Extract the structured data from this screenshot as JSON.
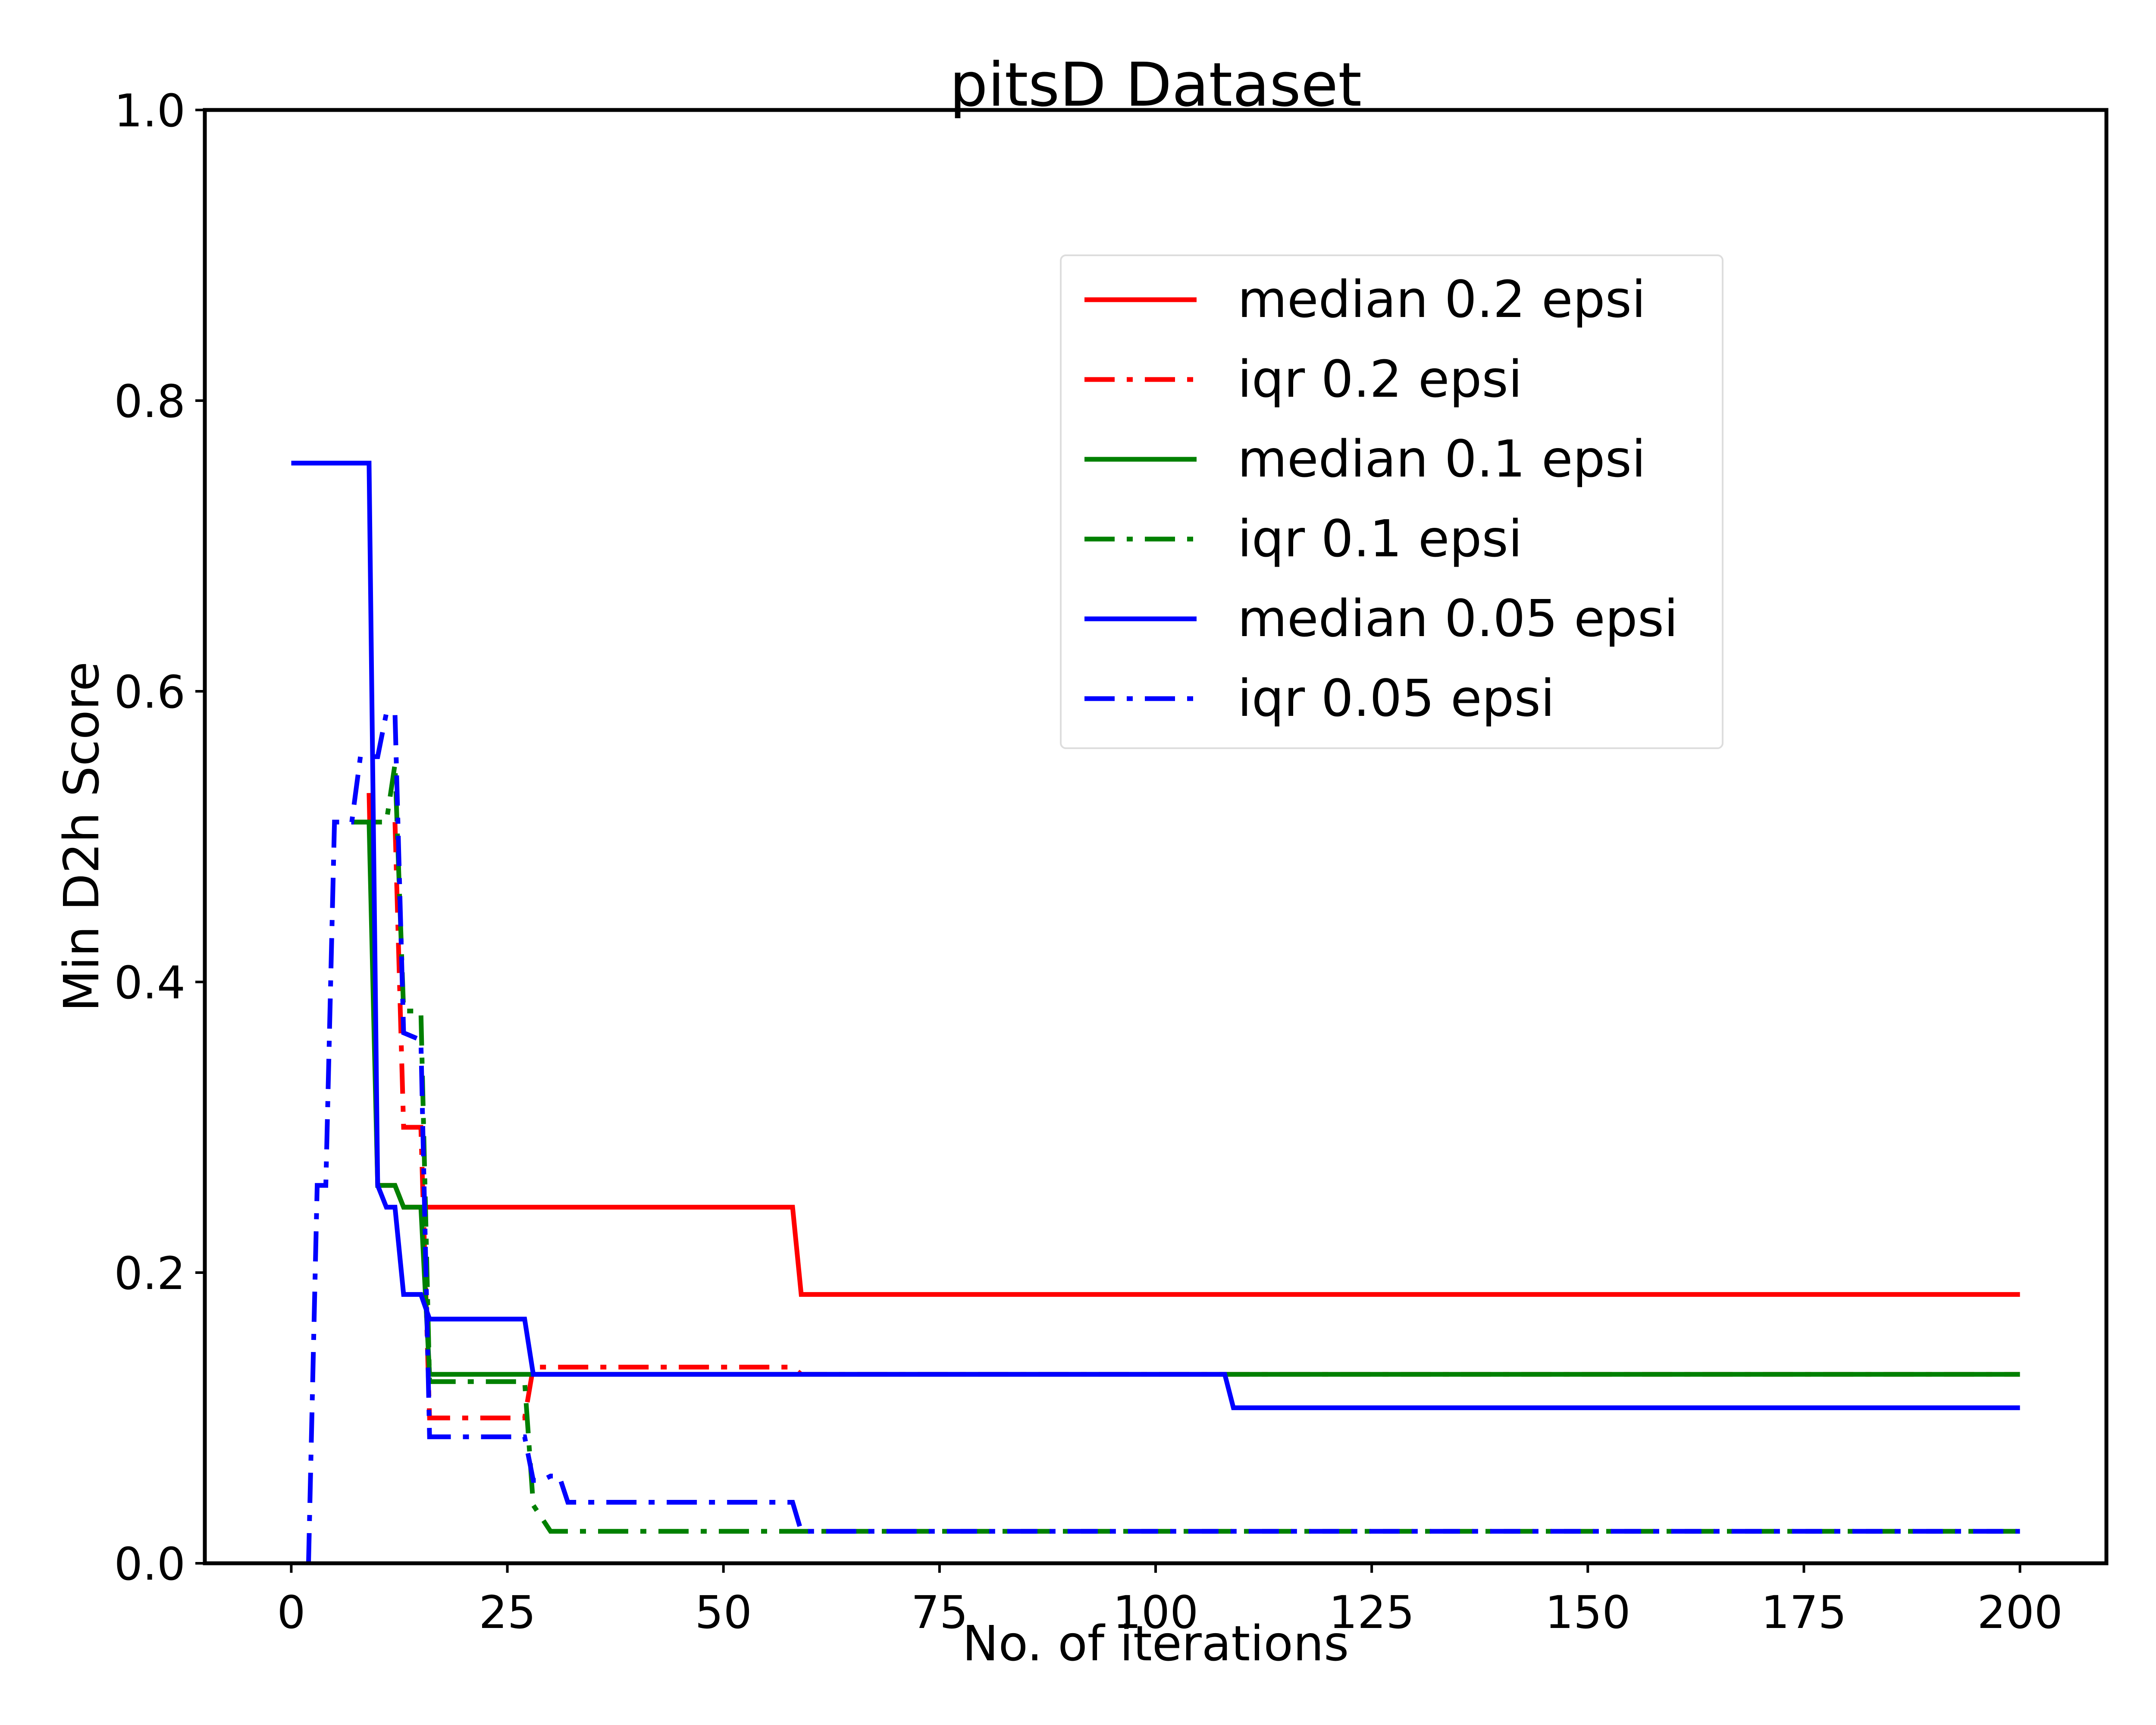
{
  "chart_data": {
    "type": "line",
    "title": "pitsD Dataset",
    "xlabel": "No. of iterations",
    "ylabel": "Min D2h Score",
    "xlim": [
      -10,
      210
    ],
    "ylim": [
      0,
      1
    ],
    "xticks": [
      0,
      25,
      50,
      75,
      100,
      125,
      150,
      175,
      200
    ],
    "yticks": [
      0.0,
      0.2,
      0.4,
      0.6,
      0.8,
      1.0
    ],
    "xtick_labels": [
      "0",
      "25",
      "50",
      "75",
      "100",
      "125",
      "150",
      "175",
      "200"
    ],
    "ytick_labels": [
      "0.0",
      "0.2",
      "0.4",
      "0.6",
      "0.8",
      "1.0"
    ],
    "grid": false,
    "legend_position": "upper-right",
    "series": [
      {
        "name": "median 0.2 epsi",
        "color": "#ff0000",
        "style": "solid",
        "points": [
          [
            9,
            0.53
          ],
          [
            10,
            0.26
          ],
          [
            12,
            0.26
          ],
          [
            13,
            0.245
          ],
          [
            58,
            0.245
          ],
          [
            59,
            0.185
          ],
          [
            200,
            0.185
          ]
        ]
      },
      {
        "name": "iqr 0.2 epsi",
        "color": "#ff0000",
        "style": "dashdot",
        "points": [
          [
            12,
            0.51
          ],
          [
            13,
            0.3
          ],
          [
            15,
            0.3
          ],
          [
            16,
            0.1
          ],
          [
            27,
            0.1
          ],
          [
            28,
            0.135
          ],
          [
            58,
            0.135
          ],
          [
            59,
            0.13
          ],
          [
            200,
            0.13
          ]
        ]
      },
      {
        "name": "median 0.1 epsi",
        "color": "#008000",
        "style": "solid",
        "points": [
          [
            7,
            0.51
          ],
          [
            9,
            0.51
          ],
          [
            10,
            0.26
          ],
          [
            12,
            0.26
          ],
          [
            13,
            0.245
          ],
          [
            15,
            0.245
          ],
          [
            16,
            0.13
          ],
          [
            200,
            0.13
          ]
        ]
      },
      {
        "name": "iqr 0.1 epsi",
        "color": "#008000",
        "style": "dashdot",
        "points": [
          [
            7,
            0.51
          ],
          [
            11,
            0.51
          ],
          [
            12,
            0.55
          ],
          [
            13,
            0.38
          ],
          [
            15,
            0.38
          ],
          [
            16,
            0.125
          ],
          [
            27,
            0.125
          ],
          [
            28,
            0.04
          ],
          [
            30,
            0.022
          ],
          [
            200,
            0.022
          ]
        ]
      },
      {
        "name": "median 0.05 epsi",
        "color": "#0000ff",
        "style": "solid",
        "points": [
          [
            0,
            0.757
          ],
          [
            9,
            0.757
          ],
          [
            10,
            0.26
          ],
          [
            11,
            0.245
          ],
          [
            12,
            0.245
          ],
          [
            13,
            0.185
          ],
          [
            15,
            0.185
          ],
          [
            16,
            0.168
          ],
          [
            27,
            0.168
          ],
          [
            28,
            0.13
          ],
          [
            108,
            0.13
          ],
          [
            109,
            0.107
          ],
          [
            200,
            0.107
          ]
        ]
      },
      {
        "name": "iqr 0.05 epsi",
        "color": "#0000ff",
        "style": "dashdot",
        "points": [
          [
            2,
            0.0
          ],
          [
            3,
            0.26
          ],
          [
            4,
            0.26
          ],
          [
            5,
            0.51
          ],
          [
            7,
            0.51
          ],
          [
            8,
            0.555
          ],
          [
            10,
            0.555
          ],
          [
            11,
            0.585
          ],
          [
            12,
            0.585
          ],
          [
            13,
            0.365
          ],
          [
            15,
            0.36
          ],
          [
            16,
            0.087
          ],
          [
            27,
            0.087
          ],
          [
            28,
            0.057
          ],
          [
            29,
            0.057
          ],
          [
            30,
            0.06
          ],
          [
            31,
            0.06
          ],
          [
            32,
            0.042
          ],
          [
            58,
            0.042
          ],
          [
            59,
            0.022
          ],
          [
            200,
            0.022
          ]
        ]
      }
    ]
  }
}
